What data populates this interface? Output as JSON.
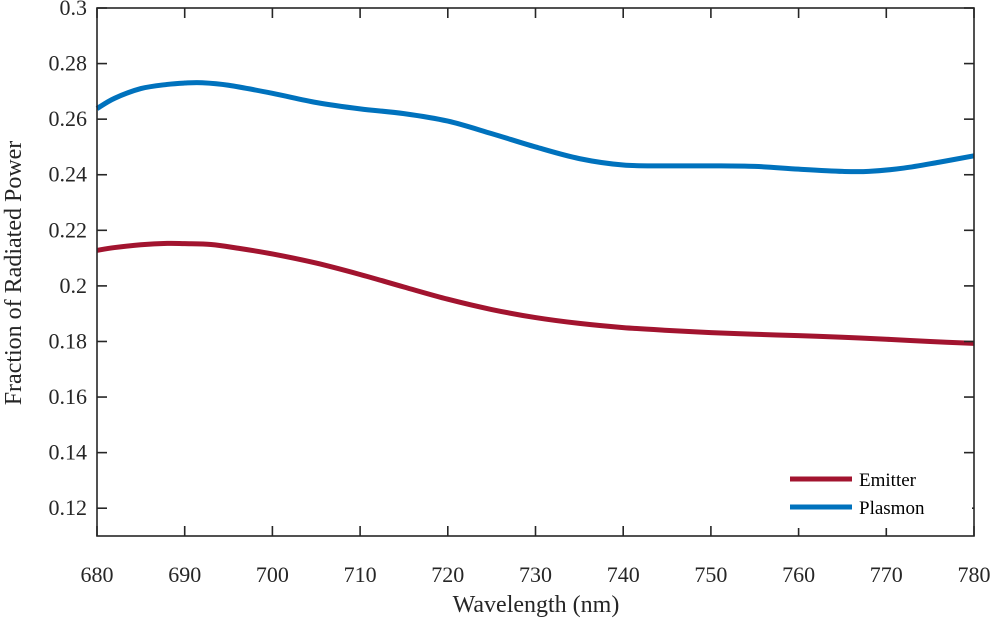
{
  "chart_data": {
    "type": "line",
    "title": "",
    "xlabel": "Wavelength (nm)",
    "ylabel": "Fraction of Radiated Power",
    "xlim": [
      680,
      780
    ],
    "ylim": [
      0.11,
      0.3
    ],
    "xticks": [
      680,
      690,
      700,
      710,
      720,
      730,
      740,
      750,
      760,
      770,
      780
    ],
    "xtick_labels": [
      "680",
      "690",
      "700",
      "710",
      "720",
      "730",
      "740",
      "750",
      "760",
      "770",
      "780"
    ],
    "yticks": [
      0.12,
      0.14,
      0.16,
      0.18,
      0.2,
      0.22,
      0.24,
      0.26,
      0.28,
      0.3
    ],
    "ytick_labels": [
      "0.12",
      "0.14",
      "0.16",
      "0.18",
      "0.2",
      "0.22",
      "0.24",
      "0.26",
      "0.28",
      "0.3"
    ],
    "grid": false,
    "legend_position": "bottom-right",
    "series": [
      {
        "name": "Emitter",
        "color": "#A2142F",
        "x": [
          680,
          682,
          685,
          688,
          690,
          693,
          696,
          700,
          705,
          710,
          715,
          720,
          725,
          730,
          735,
          740,
          745,
          750,
          755,
          760,
          765,
          770,
          775,
          780
        ],
        "y": [
          0.2128,
          0.2138,
          0.2148,
          0.2153,
          0.2152,
          0.2149,
          0.2136,
          0.2115,
          0.2082,
          0.2041,
          0.1996,
          0.1952,
          0.1915,
          0.1886,
          0.1865,
          0.185,
          0.184,
          0.1832,
          0.1826,
          0.1821,
          0.1815,
          0.1808,
          0.18,
          0.1793
        ]
      },
      {
        "name": "Plasmon",
        "color": "#0072BD",
        "x": [
          680,
          682,
          685,
          688,
          690,
          692,
          695,
          700,
          705,
          710,
          715,
          720,
          725,
          730,
          735,
          740,
          745,
          750,
          755,
          760,
          765,
          768,
          772,
          776,
          780
        ],
        "y": [
          0.2638,
          0.2675,
          0.271,
          0.2725,
          0.273,
          0.2731,
          0.2722,
          0.2693,
          0.266,
          0.2637,
          0.262,
          0.2593,
          0.2548,
          0.25,
          0.2458,
          0.2435,
          0.2432,
          0.2432,
          0.243,
          0.242,
          0.2412,
          0.2412,
          0.2424,
          0.2445,
          0.2468
        ]
      }
    ]
  }
}
